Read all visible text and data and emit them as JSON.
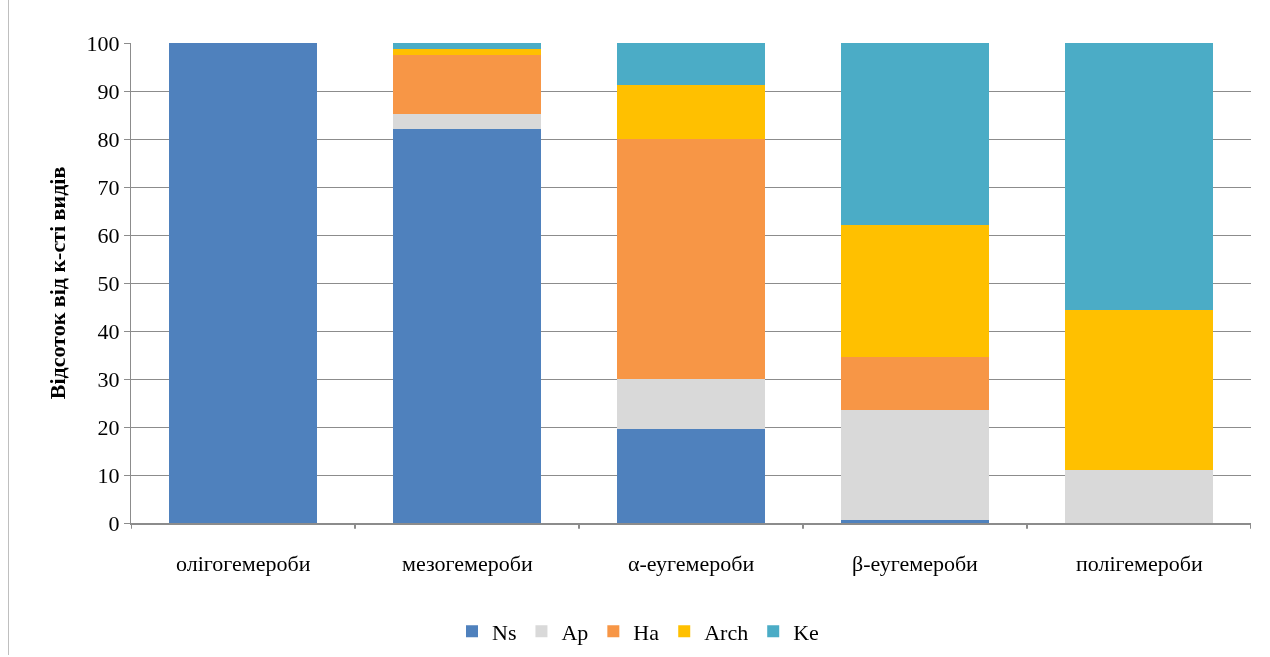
{
  "chart_data": {
    "type": "bar",
    "stacked": true,
    "ylabel": "Відсоток від к-сті видів",
    "categories": [
      "олігогемероби",
      "мезогемероби",
      "α-еугемероби",
      "β-еугемероби",
      "полігемероби"
    ],
    "series": [
      {
        "name": "Ns",
        "color": "#4f81bd",
        "values": [
          100,
          82.1,
          19.5,
          0.6,
          0
        ]
      },
      {
        "name": "Ap",
        "color": "#d9d9d9",
        "values": [
          0,
          3.1,
          10.4,
          22.9,
          11.0
        ]
      },
      {
        "name": "Ha",
        "color": "#f79646",
        "values": [
          0,
          12.3,
          50.2,
          11.0,
          0
        ]
      },
      {
        "name": "Arch",
        "color": "#ffc000",
        "values": [
          0,
          1.2,
          11.1,
          27.6,
          33.4
        ]
      },
      {
        "name": "Ke",
        "color": "#4bacc6",
        "values": [
          0,
          1.3,
          8.8,
          37.9,
          55.6
        ]
      }
    ],
    "ylim": [
      0,
      100
    ],
    "yticks": [
      0,
      10,
      20,
      30,
      40,
      50,
      60,
      70,
      80,
      90,
      100
    ],
    "grid": "y",
    "legend": "bottom"
  }
}
